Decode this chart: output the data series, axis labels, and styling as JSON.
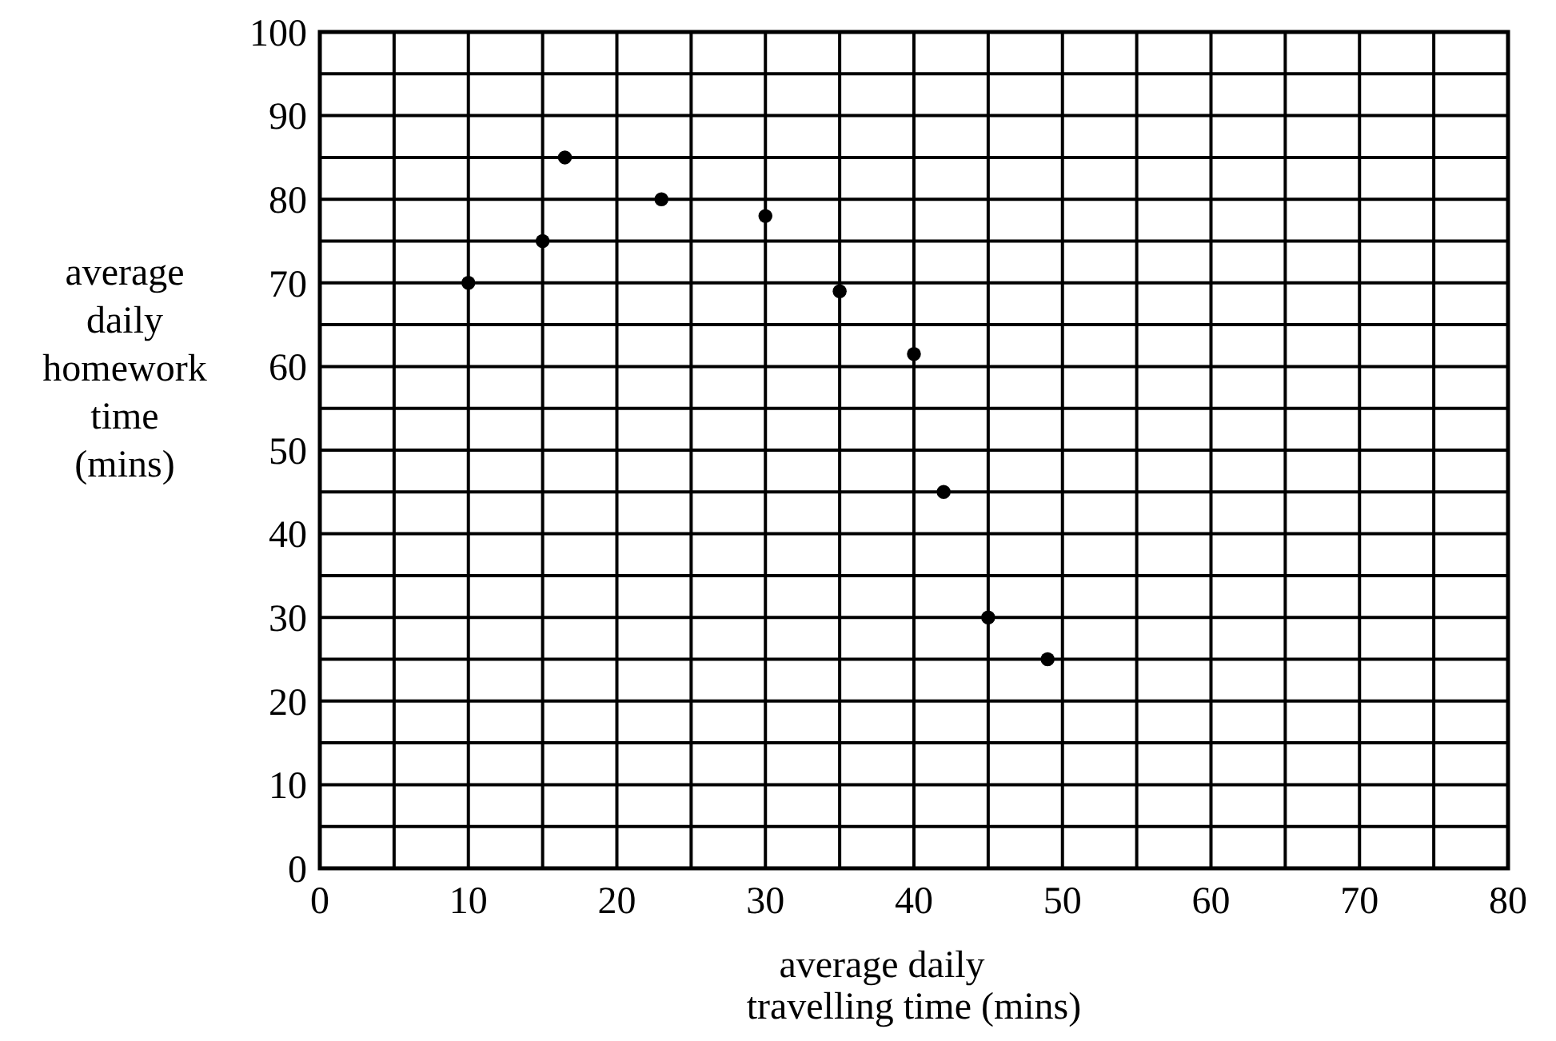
{
  "chart_data": {
    "type": "scatter",
    "xlabel": "average daily\ntravelling time (mins)",
    "ylabel": "average\ndaily\nhomework\ntime\n(mins)",
    "x": [
      10,
      15,
      16.5,
      23,
      30,
      35,
      40,
      42,
      45,
      49
    ],
    "series": [
      {
        "color": "#000000",
        "values": [
          70,
          75,
          85,
          80,
          78,
          69,
          61.5,
          45,
          30,
          25
        ]
      }
    ],
    "marker": "circle",
    "grid": true,
    "xlim": [
      0,
      80
    ],
    "xticks": [
      0,
      {
        "value": 5,
        "label": null
      },
      10,
      {
        "value": 15,
        "label": null
      },
      20,
      {
        "value": 25,
        "label": null
      },
      30,
      {
        "value": 35,
        "label": null
      },
      40,
      {
        "value": 45,
        "label": null
      },
      50,
      {
        "value": 55,
        "label": null
      },
      60,
      {
        "value": 65,
        "label": null
      },
      70,
      {
        "value": 75,
        "label": null
      },
      80
    ],
    "ylim": [
      0,
      100
    ],
    "yticks": [
      0,
      {
        "value": 5,
        "label": null
      },
      10,
      {
        "value": 15,
        "label": null
      },
      20,
      {
        "value": 25,
        "label": null
      },
      30,
      {
        "value": 35,
        "label": null
      },
      40,
      {
        "value": 45,
        "label": null
      },
      50,
      {
        "value": 55,
        "label": null
      },
      60,
      {
        "value": 65,
        "label": null
      },
      70,
      {
        "value": 75,
        "label": null
      },
      80,
      {
        "value": 85,
        "label": null
      },
      90,
      {
        "value": 95,
        "label": null
      },
      100
    ]
  }
}
